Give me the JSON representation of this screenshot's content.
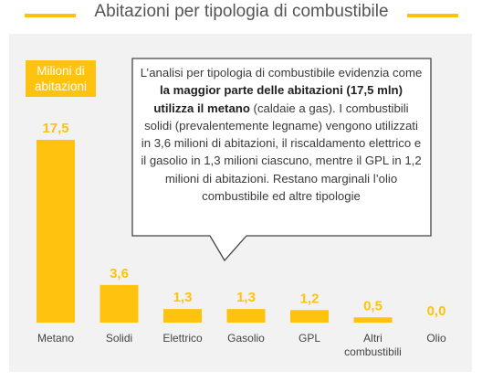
{
  "header": {
    "title": "Abitazioni per tipologia di combustibile"
  },
  "unit_badge": {
    "line1": "Milioni di",
    "line2": "abitazioni"
  },
  "callout": {
    "part1": "L’analisi per tipologia di combustibile evidenzia come ",
    "bold": "la maggior parte delle abitazioni (17,5 mln) utilizza il metano",
    "part2": " (caldaie a gas). I combustibili solidi (prevalentemente legname) vengono utilizzati in 3,6 milioni di abitazioni, il riscaldamento elettrico e il gasolio in 1,3 milioni ciascuno, mentre il GPL in 1,2 milioni di abitazioni. Restano marginali l’olio combustibile ed altre tipologie"
  },
  "colors": {
    "accent": "#ffc20e",
    "panel": "#f2f2f2"
  },
  "chart_data": {
    "type": "bar",
    "title": "Abitazioni per tipologia di combustibile",
    "ylabel": "Milioni di abitazioni",
    "categories": [
      [
        "Metano"
      ],
      [
        "Solidi"
      ],
      [
        "Elettrico"
      ],
      [
        "Gasolio"
      ],
      [
        "GPL"
      ],
      [
        "Altri",
        "combustibili"
      ],
      [
        "Olio"
      ]
    ],
    "values": [
      17.5,
      3.6,
      1.3,
      1.3,
      1.2,
      0.5,
      0.0
    ],
    "value_labels": [
      "17,5",
      "3,6",
      "1,3",
      "1,3",
      "1,2",
      "0,5",
      "0,0"
    ],
    "ylim": [
      0,
      17.5
    ],
    "grid": false,
    "legend": "none"
  }
}
